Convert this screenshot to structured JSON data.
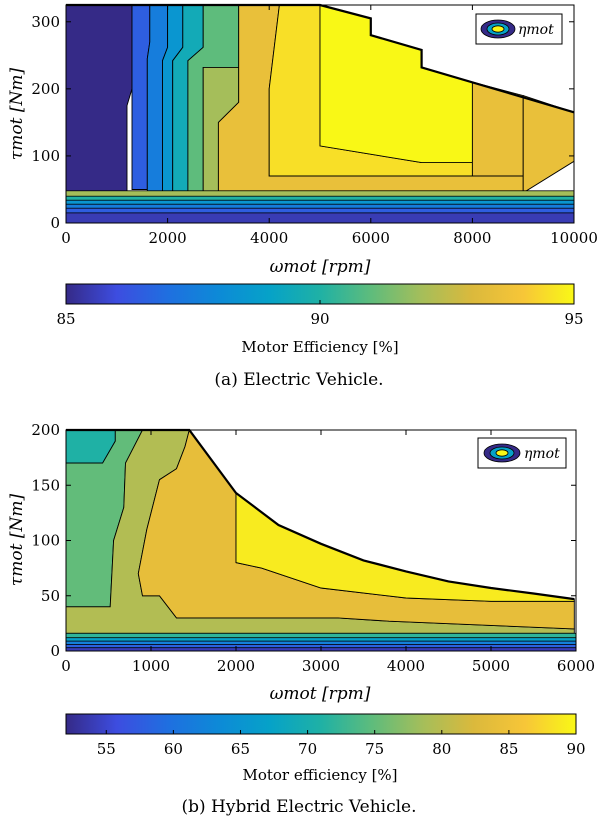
{
  "chart_data": [
    {
      "type": "contour",
      "xlabel": "ωmot [rpm]",
      "ylabel": "τmot [Nm]",
      "xlim": [
        0,
        10000
      ],
      "ylim": [
        0,
        325
      ],
      "xticks": [
        "0",
        "2000",
        "4000",
        "6000",
        "8000",
        "10000"
      ],
      "yticks": [
        "0",
        "100",
        "200",
        "300"
      ],
      "legend": "ηmot",
      "legend_position": "top-right",
      "colorbar": {
        "label": "Motor Efficiency [%]",
        "range": [
          85,
          95
        ],
        "ticks": [
          "85",
          "90",
          "95"
        ]
      },
      "caption": "(a) Electric Vehicle.",
      "max_torque_curve": [
        [
          0,
          325
        ],
        [
          5000,
          325
        ],
        [
          6000,
          305
        ],
        [
          6000,
          280
        ],
        [
          7000,
          258
        ],
        [
          7000,
          232
        ],
        [
          10000,
          165
        ]
      ],
      "regions": [
        {
          "level": 85.0,
          "polygon": [
            [
              0,
              325
            ],
            [
              1300,
              325
            ],
            [
              1300,
              200
            ],
            [
              1200,
              175
            ],
            [
              1200,
              0
            ],
            [
              0,
              0
            ]
          ]
        },
        {
          "level": 86.5,
          "polygon": [
            [
              1300,
              325
            ],
            [
              1650,
              325
            ],
            [
              1650,
              270
            ],
            [
              1600,
              245
            ],
            [
              1600,
              50
            ],
            [
              1300,
              50
            ],
            [
              1300,
              200
            ]
          ]
        },
        {
          "level": 87.5,
          "polygon": [
            [
              1650,
              325
            ],
            [
              2000,
              325
            ],
            [
              2000,
              262
            ],
            [
              1900,
              242
            ],
            [
              1900,
              42
            ],
            [
              1600,
              42
            ],
            [
              1600,
              245
            ],
            [
              1650,
              270
            ]
          ]
        },
        {
          "level": 88.5,
          "polygon": [
            [
              2000,
              325
            ],
            [
              2300,
              325
            ],
            [
              2300,
              262
            ],
            [
              2100,
              242
            ],
            [
              2100,
              40
            ],
            [
              1900,
              40
            ],
            [
              1900,
              242
            ],
            [
              2000,
              262
            ]
          ]
        },
        {
          "level": 89.5,
          "polygon": [
            [
              2300,
              325
            ],
            [
              2700,
              325
            ],
            [
              2700,
              262
            ],
            [
              2400,
              242
            ],
            [
              2400,
              38
            ],
            [
              2100,
              38
            ],
            [
              2100,
              242
            ],
            [
              2300,
              262
            ]
          ]
        },
        {
          "level": 91.0,
          "polygon": [
            [
              2700,
              325
            ],
            [
              3400,
              325
            ],
            [
              3400,
              232
            ],
            [
              2700,
              232
            ],
            [
              2700,
              35
            ],
            [
              2400,
              35
            ],
            [
              2400,
              242
            ],
            [
              2700,
              262
            ]
          ]
        },
        {
          "level": 92.0,
          "polygon": [
            [
              2700,
              232
            ],
            [
              3400,
              232
            ],
            [
              3400,
              180
            ],
            [
              3000,
              150
            ],
            [
              3000,
              40
            ],
            [
              2700,
              40
            ]
          ]
        },
        {
          "level": 93.5,
          "polygon": [
            [
              3400,
              325
            ],
            [
              4200,
              325
            ],
            [
              4000,
              200
            ],
            [
              4000,
              70
            ],
            [
              9000,
              70
            ],
            [
              9000,
              45
            ],
            [
              3000,
              45
            ],
            [
              3000,
              150
            ],
            [
              3400,
              180
            ]
          ]
        },
        {
          "level": 94.5,
          "polygon": [
            [
              4200,
              325
            ],
            [
              5000,
              325
            ],
            [
              5000,
              115
            ],
            [
              7000,
              90
            ],
            [
              8000,
              90
            ],
            [
              8000,
              210
            ],
            [
              8000,
              70
            ],
            [
              4000,
              70
            ],
            [
              4000,
              200
            ]
          ]
        },
        {
          "level": 95.0,
          "polygon": [
            [
              5000,
              325
            ],
            [
              6000,
              305
            ],
            [
              6000,
              280
            ],
            [
              7000,
              258
            ],
            [
              7000,
              232
            ],
            [
              8000,
              210
            ],
            [
              8000,
              90
            ],
            [
              7000,
              90
            ],
            [
              5000,
              115
            ]
          ]
        },
        {
          "level": 93.5,
          "polygon": [
            [
              8000,
              210
            ],
            [
              9000,
              190
            ],
            [
              9000,
              70
            ],
            [
              8000,
              70
            ]
          ]
        },
        {
          "level": 93.5,
          "polygon": [
            [
              9000,
              190
            ],
            [
              10000,
              165
            ],
            [
              10000,
              92
            ],
            [
              9000,
              45
            ]
          ]
        }
      ],
      "bands": [
        {
          "level": 92.0,
          "y_top": 48
        },
        {
          "level": 90.0,
          "y_top": 40
        },
        {
          "level": 88.5,
          "y_top": 34
        },
        {
          "level": 87.5,
          "y_top": 28
        },
        {
          "level": 86.5,
          "y_top": 22
        },
        {
          "level": 85.5,
          "y_top": 15
        }
      ]
    },
    {
      "type": "contour",
      "xlabel": "ωmot [rpm]",
      "ylabel": "τmot [Nm]",
      "xlim": [
        0,
        6000
      ],
      "ylim": [
        0,
        200
      ],
      "xticks": [
        "0",
        "1000",
        "2000",
        "3000",
        "4000",
        "5000",
        "6000"
      ],
      "yticks": [
        "0",
        "50",
        "100",
        "150",
        "200"
      ],
      "legend": "ηmot",
      "legend_position": "top-right",
      "colorbar": {
        "label": "Motor efficiency [%]",
        "range": [
          52,
          90
        ],
        "ticks": [
          "55",
          "60",
          "65",
          "70",
          "75",
          "80",
          "85",
          "90"
        ]
      },
      "caption": "(b) Hybrid Electric Vehicle.",
      "max_torque_curve": [
        [
          0,
          200
        ],
        [
          1450,
          200
        ],
        [
          2000,
          143
        ],
        [
          2500,
          114
        ],
        [
          3000,
          97
        ],
        [
          3500,
          82
        ],
        [
          4000,
          72
        ],
        [
          4500,
          63
        ],
        [
          5000,
          57
        ],
        [
          5500,
          52
        ],
        [
          5980,
          47
        ]
      ],
      "regions": [
        {
          "level": 71.0,
          "polygon": [
            [
              0,
              200
            ],
            [
              580,
              200
            ],
            [
              580,
              190
            ],
            [
              430,
              170
            ],
            [
              0,
              170
            ]
          ]
        },
        {
          "level": 75.0,
          "polygon": [
            [
              0,
              170
            ],
            [
              430,
              170
            ],
            [
              580,
              190
            ],
            [
              580,
              200
            ],
            [
              900,
              200
            ],
            [
              700,
              170
            ],
            [
              680,
              130
            ],
            [
              560,
              100
            ],
            [
              520,
              40
            ],
            [
              0,
              40
            ]
          ]
        },
        {
          "level": 79.5,
          "polygon": [
            [
              900,
              200
            ],
            [
              1450,
              200
            ],
            [
              1400,
              185
            ],
            [
              1300,
              165
            ],
            [
              1100,
              155
            ],
            [
              950,
              110
            ],
            [
              850,
              70
            ],
            [
              900,
              50
            ],
            [
              1100,
              50
            ],
            [
              1300,
              30
            ],
            [
              3200,
              30
            ],
            [
              3800,
              27
            ],
            [
              5980,
              20
            ],
            [
              5980,
              16
            ],
            [
              0,
              16
            ],
            [
              0,
              40
            ],
            [
              520,
              40
            ],
            [
              560,
              100
            ],
            [
              680,
              130
            ],
            [
              700,
              170
            ]
          ]
        },
        {
          "level": 84.0,
          "polygon": [
            [
              1450,
              200
            ],
            [
              2000,
              143
            ],
            [
              2000,
              80
            ],
            [
              2300,
              75
            ],
            [
              3000,
              57
            ],
            [
              4000,
              48
            ],
            [
              5000,
              45
            ],
            [
              5980,
              45
            ],
            [
              5980,
              20
            ],
            [
              3800,
              27
            ],
            [
              3200,
              30
            ],
            [
              1300,
              30
            ],
            [
              1100,
              50
            ],
            [
              900,
              50
            ],
            [
              850,
              70
            ],
            [
              950,
              110
            ],
            [
              1100,
              155
            ],
            [
              1300,
              165
            ],
            [
              1400,
              185
            ]
          ]
        },
        {
          "level": 89.0,
          "polygon": [
            [
              2000,
              143
            ],
            [
              2500,
              114
            ],
            [
              3000,
              97
            ],
            [
              3500,
              82
            ],
            [
              4000,
              72
            ],
            [
              4500,
              63
            ],
            [
              5000,
              57
            ],
            [
              5500,
              52
            ],
            [
              5980,
              47
            ],
            [
              5980,
              45
            ],
            [
              5000,
              45
            ],
            [
              4000,
              48
            ],
            [
              3000,
              57
            ],
            [
              2300,
              75
            ],
            [
              2000,
              80
            ]
          ]
        }
      ],
      "bands": [
        {
          "level": 72.0,
          "y_top": 16
        },
        {
          "level": 67.0,
          "y_top": 12
        },
        {
          "level": 62.0,
          "y_top": 9
        },
        {
          "level": 58.0,
          "y_top": 6
        },
        {
          "level": 54.0,
          "y_top": 3
        }
      ]
    }
  ]
}
